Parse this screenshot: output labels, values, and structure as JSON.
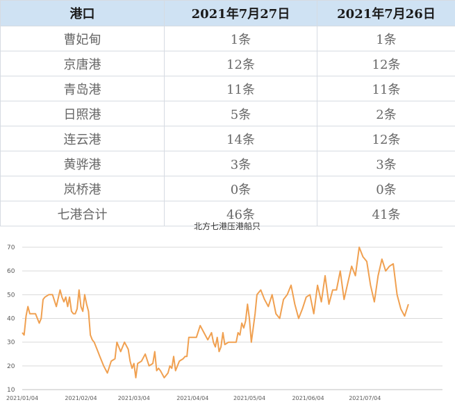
{
  "table": {
    "headers": [
      "港口",
      "2021年7月27日",
      "2021年7月26日"
    ],
    "rows": [
      [
        "曹妃甸",
        "1条",
        "1条"
      ],
      [
        "京唐港",
        "12条",
        "12条"
      ],
      [
        "青岛港",
        "11条",
        "11条"
      ],
      [
        "日照港",
        "5条",
        "2条"
      ],
      [
        "连云港",
        "14条",
        "12条"
      ],
      [
        "黄骅港",
        "3条",
        "3条"
      ],
      [
        "岚桥港",
        "0条",
        "0条"
      ],
      [
        "七港合计",
        "46条",
        "41条"
      ]
    ]
  },
  "colors": {
    "header_bg": "#cfe2f3",
    "line": "#f0a050",
    "grid": "#d9d9d9"
  },
  "chart_data": {
    "type": "line",
    "title": "北方七港压港船只",
    "ylim": [
      10,
      70
    ],
    "yticks": [
      10,
      20,
      30,
      40,
      50,
      60,
      70
    ],
    "grid": true,
    "xlim": [
      "2021/01/04",
      "2021/08/14"
    ],
    "xticks": [
      "2021/01/04",
      "2021/02/04",
      "2021/03/04",
      "2021/04/04",
      "2021/05/04",
      "2021/06/04",
      "2021/07/04"
    ],
    "series": [
      {
        "x": [
          "2021/01/04",
          "2021/01/05",
          "2021/01/06",
          "2021/01/07",
          "2021/01/08",
          "2021/01/09",
          "2021/01/11",
          "2021/01/13",
          "2021/01/14",
          "2021/01/15",
          "2021/01/16",
          "2021/01/18",
          "2021/01/20",
          "2021/01/22",
          "2021/01/24",
          "2021/01/25",
          "2021/01/26",
          "2021/01/27",
          "2021/01/28",
          "2021/01/29",
          "2021/01/30",
          "2021/01/31",
          "2021/02/01",
          "2021/02/02",
          "2021/02/03",
          "2021/02/04",
          "2021/02/05",
          "2021/02/06",
          "2021/02/07",
          "2021/02/08",
          "2021/02/09",
          "2021/02/10",
          "2021/02/11",
          "2021/02/12",
          "2021/02/13",
          "2021/02/14",
          "2021/02/16",
          "2021/02/18",
          "2021/02/20",
          "2021/02/22",
          "2021/02/23",
          "2021/02/24",
          "2021/02/25",
          "2021/02/27",
          "2021/03/01",
          "2021/03/02",
          "2021/03/03",
          "2021/03/04",
          "2021/03/05",
          "2021/03/06",
          "2021/03/08",
          "2021/03/10",
          "2021/03/12",
          "2021/03/14",
          "2021/03/15",
          "2021/03/16",
          "2021/03/17",
          "2021/03/18",
          "2021/03/20",
          "2021/03/22",
          "2021/03/23",
          "2021/03/24",
          "2021/03/25",
          "2021/03/26",
          "2021/03/28",
          "2021/03/30",
          "2021/03/31",
          "2021/04/01",
          "2021/04/02",
          "2021/04/04",
          "2021/04/06",
          "2021/04/08",
          "2021/04/10",
          "2021/04/12",
          "2021/04/14",
          "2021/04/15",
          "2021/04/16",
          "2021/04/17",
          "2021/04/18",
          "2021/04/19",
          "2021/04/20",
          "2021/04/21",
          "2021/04/23",
          "2021/04/25",
          "2021/04/27",
          "2021/04/28",
          "2021/04/29",
          "2021/04/30",
          "2021/05/01",
          "2021/05/02",
          "2021/05/03",
          "2021/05/04",
          "2021/05/05",
          "2021/05/06",
          "2021/05/07",
          "2021/05/08",
          "2021/05/10",
          "2021/05/12",
          "2021/05/14",
          "2021/05/16",
          "2021/05/18",
          "2021/05/20",
          "2021/05/22",
          "2021/05/24",
          "2021/05/26",
          "2021/05/28",
          "2021/05/30",
          "2021/06/01",
          "2021/06/03",
          "2021/06/05",
          "2021/06/07",
          "2021/06/09",
          "2021/06/11",
          "2021/06/13",
          "2021/06/15",
          "2021/06/17",
          "2021/06/19",
          "2021/06/21",
          "2021/06/23",
          "2021/06/25",
          "2021/06/27",
          "2021/06/29",
          "2021/07/01",
          "2021/07/03",
          "2021/07/05",
          "2021/07/07",
          "2021/07/09",
          "2021/07/11",
          "2021/07/13",
          "2021/07/15",
          "2021/07/17",
          "2021/07/19",
          "2021/07/21",
          "2021/07/23",
          "2021/07/25",
          "2021/07/27"
        ],
        "values": [
          34,
          33,
          41,
          45,
          42,
          42,
          42,
          38,
          40,
          48,
          49,
          50,
          50,
          45,
          52,
          49,
          47,
          49,
          45,
          49,
          43,
          42,
          42,
          44,
          52,
          45,
          43,
          50,
          46,
          43,
          33,
          31,
          30,
          28,
          26,
          24,
          20,
          17,
          22,
          23,
          30,
          28,
          26,
          30,
          27,
          22,
          19,
          21,
          15,
          21,
          22,
          25,
          20,
          21,
          26,
          18,
          19,
          18,
          15,
          17,
          20,
          19,
          24,
          18,
          22,
          23,
          24,
          24,
          32,
          32,
          32,
          37,
          34,
          31,
          34,
          30,
          28,
          32,
          26,
          28,
          34,
          29,
          30,
          30,
          30,
          34,
          33,
          38,
          36,
          39,
          46,
          40,
          30,
          36,
          42,
          50,
          52,
          48,
          45,
          50,
          42,
          40,
          48,
          50,
          54,
          46,
          40,
          44,
          49,
          50,
          42,
          54,
          47,
          58,
          46,
          52,
          52,
          60,
          48,
          55,
          62,
          58,
          70,
          66,
          64,
          54,
          47,
          58,
          65,
          60,
          62,
          63,
          50,
          44,
          41,
          46
        ]
      }
    ]
  }
}
